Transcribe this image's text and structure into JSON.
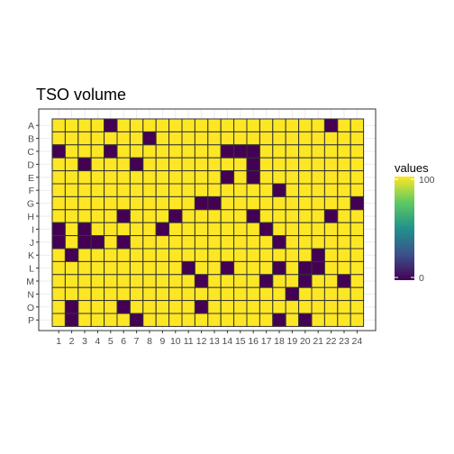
{
  "chart_data": {
    "type": "heatmap",
    "title": "TSO volume",
    "xlabel": "",
    "ylabel": "",
    "columns": [
      "1",
      "2",
      "3",
      "4",
      "5",
      "6",
      "7",
      "8",
      "9",
      "10",
      "11",
      "12",
      "13",
      "14",
      "15",
      "16",
      "17",
      "18",
      "19",
      "20",
      "21",
      "22",
      "23",
      "24"
    ],
    "rows": [
      "A",
      "B",
      "C",
      "D",
      "E",
      "F",
      "G",
      "H",
      "I",
      "J",
      "K",
      "L",
      "M",
      "N",
      "O",
      "P"
    ],
    "zero_cells": [
      [
        "A",
        5
      ],
      [
        "A",
        22
      ],
      [
        "B",
        8
      ],
      [
        "C",
        1
      ],
      [
        "C",
        5
      ],
      [
        "C",
        14
      ],
      [
        "C",
        15
      ],
      [
        "C",
        16
      ],
      [
        "D",
        3
      ],
      [
        "D",
        7
      ],
      [
        "D",
        16
      ],
      [
        "E",
        14
      ],
      [
        "E",
        16
      ],
      [
        "F",
        18
      ],
      [
        "G",
        12
      ],
      [
        "G",
        13
      ],
      [
        "G",
        24
      ],
      [
        "H",
        6
      ],
      [
        "H",
        10
      ],
      [
        "H",
        16
      ],
      [
        "H",
        22
      ],
      [
        "I",
        1
      ],
      [
        "I",
        3
      ],
      [
        "I",
        9
      ],
      [
        "I",
        17
      ],
      [
        "J",
        1
      ],
      [
        "J",
        3
      ],
      [
        "J",
        4
      ],
      [
        "J",
        6
      ],
      [
        "J",
        18
      ],
      [
        "K",
        2
      ],
      [
        "K",
        21
      ],
      [
        "L",
        11
      ],
      [
        "L",
        14
      ],
      [
        "L",
        18
      ],
      [
        "L",
        20
      ],
      [
        "L",
        21
      ],
      [
        "M",
        12
      ],
      [
        "M",
        17
      ],
      [
        "M",
        20
      ],
      [
        "M",
        23
      ],
      [
        "N",
        19
      ],
      [
        "O",
        2
      ],
      [
        "O",
        6
      ],
      [
        "O",
        12
      ],
      [
        "P",
        2
      ],
      [
        "P",
        7
      ],
      [
        "P",
        18
      ],
      [
        "P",
        20
      ]
    ],
    "default_value": 100,
    "zero_value": 0,
    "legend": {
      "title": "values",
      "placement": "right",
      "min": 0,
      "max": 100,
      "tick_labels": [
        "0",
        "100"
      ],
      "colors": [
        "#440154",
        "#3b528b",
        "#21918c",
        "#5ec962",
        "#fde725"
      ]
    },
    "grid": true,
    "colors": {
      "high": "#fde725",
      "low": "#440154",
      "cell_border": "#333333"
    }
  }
}
